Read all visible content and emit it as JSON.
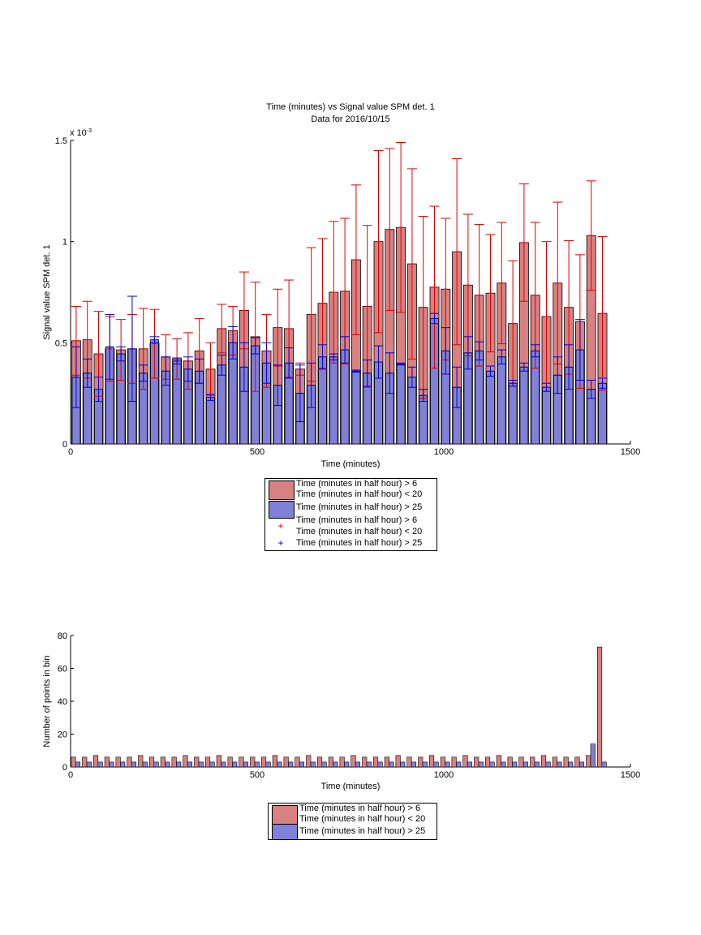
{
  "colors": {
    "red_fill": "#d98080",
    "blue_fill": "#8080d8",
    "red_err": "#e00000",
    "blue_err": "#0000e0"
  },
  "chart_data": [
    {
      "type": "bar",
      "title": "Time (minutes) vs Signal value SPM det. 1",
      "subtitle": "Data for 2016/10/15",
      "xlabel": "Time (minutes)",
      "ylabel": "Signal value SPM det. 1",
      "exponent_label": "x 10",
      "exponent_power": "-3",
      "xlim": [
        0,
        1500
      ],
      "ylim": [
        0,
        0.0015
      ],
      "xticks": [
        "0",
        "500",
        "1000",
        "1500"
      ],
      "yticks": [
        "0",
        "0.5",
        "1",
        "1.5"
      ],
      "bin_width": 30,
      "x": [
        15,
        45,
        75,
        105,
        135,
        165,
        195,
        225,
        255,
        285,
        315,
        345,
        375,
        405,
        435,
        465,
        495,
        525,
        555,
        585,
        615,
        645,
        675,
        705,
        735,
        765,
        795,
        825,
        855,
        885,
        915,
        945,
        975,
        1005,
        1035,
        1065,
        1095,
        1125,
        1155,
        1185,
        1215,
        1245,
        1275,
        1305,
        1335,
        1365,
        1395,
        1425
      ],
      "series": [
        {
          "name": "Time (minutes in half hour) > 6",
          "name2": "Time (minutes in half hour) < 20",
          "values": [
            0.51,
            0.515,
            0.445,
            0.47,
            0.465,
            0.47,
            0.47,
            0.495,
            0.43,
            0.42,
            0.41,
            0.46,
            0.37,
            0.57,
            0.56,
            0.66,
            0.53,
            0.46,
            0.575,
            0.57,
            0.37,
            0.64,
            0.695,
            0.75,
            0.755,
            0.91,
            0.68,
            1.0,
            1.06,
            1.07,
            0.89,
            0.675,
            0.775,
            0.765,
            0.95,
            0.785,
            0.735,
            0.745,
            0.795,
            0.595,
            0.995,
            0.735,
            0.63,
            0.795,
            0.675,
            0.605,
            1.03,
            0.645
          ],
          "err": [
            0.17,
            0.19,
            0.21,
            0.16,
            0.15,
            0.17,
            0.2,
            0.17,
            0.11,
            0.1,
            0.14,
            0.16,
            0.13,
            0.12,
            0.12,
            0.19,
            0.27,
            0.18,
            0.19,
            0.24,
            0.03,
            0.33,
            0.32,
            0.35,
            0.36,
            0.37,
            0.4,
            0.45,
            0.4,
            0.42,
            0.47,
            0.45,
            0.4,
            0.35,
            0.46,
            0.35,
            0.35,
            0.29,
            0.3,
            0.31,
            0.29,
            0.36,
            0.37,
            0.4,
            0.33,
            0.33,
            0.27,
            0.38
          ]
        },
        {
          "name": "Time (minutes in half hour) > 25",
          "values": [
            0.33,
            0.35,
            0.27,
            0.48,
            0.445,
            0.47,
            0.35,
            0.515,
            0.36,
            0.41,
            0.37,
            0.36,
            0.23,
            0.39,
            0.5,
            0.38,
            0.485,
            0.4,
            0.29,
            0.4,
            0.25,
            0.29,
            0.43,
            0.43,
            0.465,
            0.36,
            0.35,
            0.405,
            0.35,
            0.395,
            0.33,
            0.24,
            0.62,
            0.46,
            0.28,
            0.45,
            0.46,
            0.36,
            0.43,
            0.3,
            0.38,
            0.46,
            0.28,
            0.34,
            0.38,
            0.465,
            0.27,
            0.3
          ],
          "err": [
            0.15,
            0.07,
            0.06,
            0.16,
            0.035,
            0.26,
            0.04,
            0.015,
            0.07,
            0.015,
            0.06,
            0.06,
            0.015,
            0.05,
            0.08,
            0.12,
            0.04,
            0.1,
            0.1,
            0.075,
            0.14,
            0.11,
            0.06,
            0.015,
            0.065,
            0.005,
            0.065,
            0.08,
            0.1,
            0.005,
            0.05,
            0.03,
            0.025,
            0.115,
            0.1,
            0.08,
            0.045,
            0.025,
            0.035,
            0.015,
            0.02,
            0.03,
            0.02,
            0.09,
            0.11,
            0.15,
            0.045,
            0.025
          ]
        }
      ],
      "legend": [
        {
          "kind": "patch",
          "color": "#d98080",
          "line1": "Time (minutes in half hour) > 6",
          "line2": "Time (minutes in half hour) < 20"
        },
        {
          "kind": "patch",
          "color": "#8080d8",
          "line1": "Time (minutes in half hour) > 25"
        },
        {
          "kind": "marker",
          "color": "#e00000",
          "line1": "Time (minutes in half hour) > 6",
          "line2": "Time (minutes in half hour) < 20"
        },
        {
          "kind": "marker",
          "color": "#0000e0",
          "line1": "Time (minutes in half hour) > 25"
        }
      ],
      "legend_placement": "below",
      "grid": false
    },
    {
      "type": "bar",
      "xlabel": "Time (minutes)",
      "ylabel": "Number of points in bin",
      "xlim": [
        0,
        1500
      ],
      "ylim": [
        0,
        80
      ],
      "xticks": [
        "0",
        "500",
        "1000",
        "1500"
      ],
      "yticks": [
        "0",
        "20",
        "40",
        "60",
        "80"
      ],
      "bin_width": 30,
      "x": [
        15,
        45,
        75,
        105,
        135,
        165,
        195,
        225,
        255,
        285,
        315,
        345,
        375,
        405,
        435,
        465,
        495,
        525,
        555,
        585,
        615,
        645,
        675,
        705,
        735,
        765,
        795,
        825,
        855,
        885,
        915,
        945,
        975,
        1005,
        1035,
        1065,
        1095,
        1125,
        1155,
        1185,
        1215,
        1245,
        1275,
        1305,
        1335,
        1365,
        1395,
        1425
      ],
      "series": [
        {
          "name": "Time (minutes in half hour) > 6",
          "name2": "Time (minutes in half hour) < 20",
          "values": [
            6,
            6,
            7,
            6,
            6,
            6,
            7,
            6,
            6,
            6,
            7,
            6,
            6,
            7,
            6,
            6,
            6,
            6,
            7,
            6,
            6,
            7,
            6,
            6,
            6,
            7,
            6,
            6,
            6,
            7,
            6,
            6,
            7,
            6,
            6,
            7,
            6,
            6,
            7,
            6,
            6,
            6,
            7,
            6,
            6,
            6,
            7,
            73
          ]
        },
        {
          "name": "Time (minutes in half hour) > 25",
          "values": [
            3,
            3,
            3,
            3,
            3,
            3,
            3,
            3,
            3,
            3,
            3,
            3,
            3,
            3,
            3,
            3,
            3,
            3,
            3,
            3,
            3,
            3,
            3,
            3,
            3,
            3,
            3,
            3,
            3,
            3,
            3,
            3,
            3,
            3,
            3,
            3,
            3,
            3,
            3,
            3,
            3,
            3,
            3,
            3,
            3,
            3,
            14,
            3
          ]
        }
      ],
      "legend": [
        {
          "kind": "patch",
          "color": "#d98080",
          "line1": "Time (minutes in half hour) > 6",
          "line2": "Time (minutes in half hour) < 20"
        },
        {
          "kind": "patch",
          "color": "#8080d8",
          "line1": "Time (minutes in half hour) > 25"
        }
      ],
      "legend_placement": "below",
      "grid": false
    }
  ]
}
